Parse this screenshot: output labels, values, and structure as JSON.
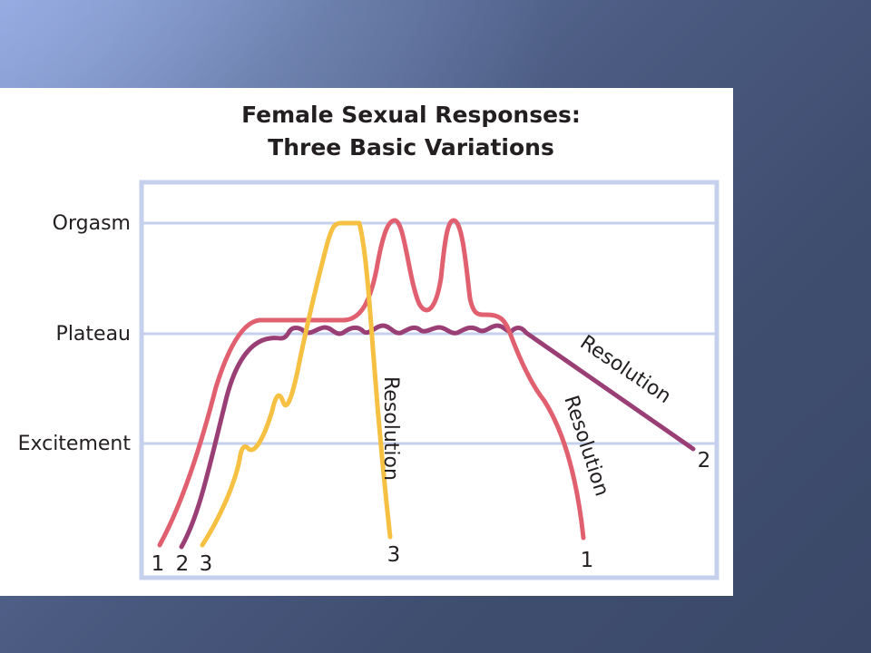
{
  "title": {
    "line1": "Female Sexual Responses:",
    "line2": "Three Basic Variations"
  },
  "stages": {
    "orgasm": "Orgasm",
    "plateau": "Plateau",
    "excitement": "Excitement"
  },
  "curves": [
    {
      "id": "1",
      "color": "#e06070",
      "start_label": "1",
      "end_label": "1",
      "resolution_label": "Resolution"
    },
    {
      "id": "2",
      "color": "#9a3f75",
      "start_label": "2",
      "end_label": "2",
      "resolution_label": "Resolution"
    },
    {
      "id": "3",
      "color": "#f6c042",
      "start_label": "3",
      "end_label": "3",
      "resolution_label": "Resolution"
    }
  ],
  "colors": {
    "frame": "#c5d0ec",
    "gridline": "#c5d0ec",
    "panel": "#ffffff"
  }
}
